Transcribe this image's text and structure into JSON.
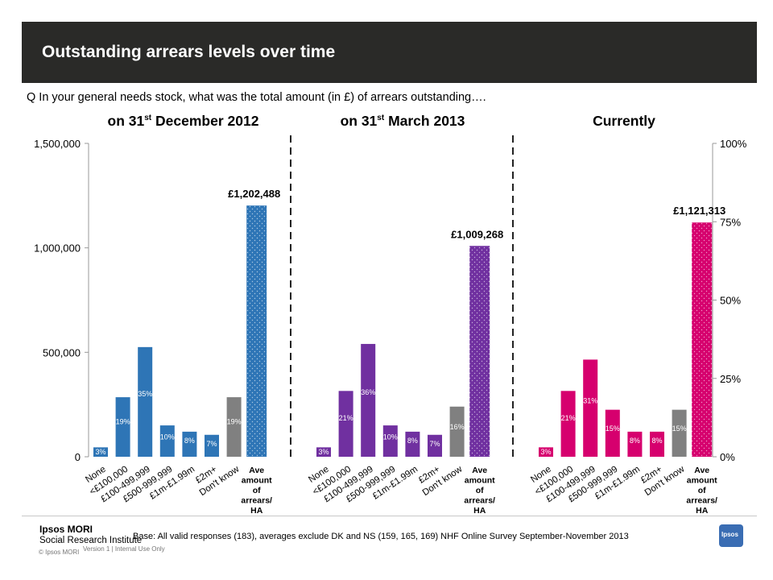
{
  "slide": {
    "title": "Outstanding arrears levels over time",
    "question": "Q In your general needs stock, what was the total amount (in £) of arrears outstanding…."
  },
  "panels": [
    {
      "title_main": "on 31",
      "title_sup": "st",
      "title_rest": " December 2012"
    },
    {
      "title_main": "on 31",
      "title_sup": "st",
      "title_rest": " March 2013"
    },
    {
      "title_main": "Currently",
      "title_sup": "",
      "title_rest": ""
    }
  ],
  "footer": {
    "logo_name": "Ipsos MORI",
    "logo_sub": "Social Research Institute",
    "copyright": "© Ipsos MORI",
    "version": "Version 1 | Internal Use Only",
    "base": "Base: All valid responses (183), averages exclude DK and NS (159, 165, 169) NHF Online Survey September-November 2013",
    "badge": "Ipsos"
  },
  "colors": {
    "panel1": "#2e75b6",
    "panel2": "#7030a0",
    "panel3": "#d6006e",
    "dont_know": "#808080",
    "header_bg": "#2a2a28"
  },
  "chart_data": {
    "type": "bar",
    "left_axis": {
      "ylim": [
        0,
        1500000
      ],
      "ticks": [
        "0",
        "500,000",
        "1,000,000",
        "1,500,000"
      ],
      "tick_values": [
        0,
        500000,
        1000000,
        1500000
      ]
    },
    "right_axis": {
      "ylim": [
        0,
        100
      ],
      "ticks": [
        "0%",
        "25%",
        "50%",
        "75%",
        "100%"
      ],
      "tick_values": [
        0,
        25,
        50,
        75,
        100
      ]
    },
    "categories": [
      "None",
      "<£100,000",
      "£100-499,999",
      "£500-999,999",
      "£1m-£1.99m",
      "£2m+",
      "Don't know"
    ],
    "average_category": "Ave amount of arrears/ HA",
    "series": [
      {
        "name": "on 31st December 2012",
        "percent_values": [
          3,
          19,
          35,
          10,
          8,
          7,
          19
        ],
        "percent_labels": [
          "3%",
          "19%",
          "35%",
          "10%",
          "8%",
          "7%",
          "19%"
        ],
        "average": 1202488,
        "average_label": "£1,202,488"
      },
      {
        "name": "on 31st March 2013",
        "percent_values": [
          3,
          21,
          36,
          10,
          8,
          7,
          16
        ],
        "percent_labels": [
          "3%",
          "21%",
          "36%",
          "10%",
          "8%",
          "7%",
          "16%"
        ],
        "average": 1009268,
        "average_label": "£1,009,268"
      },
      {
        "name": "Currently",
        "percent_values": [
          3,
          21,
          31,
          15,
          8,
          8,
          15
        ],
        "percent_labels": [
          "3%",
          "21%",
          "31%",
          "15%",
          "8%",
          "8%",
          "15%"
        ],
        "average": 1121313,
        "average_label": "£1,121,313"
      }
    ]
  }
}
